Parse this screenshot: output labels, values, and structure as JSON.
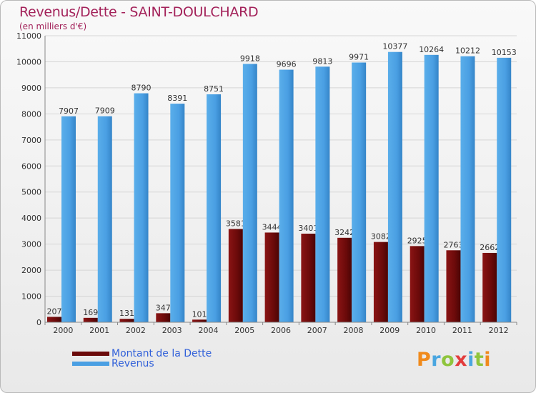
{
  "page": {
    "title": "Revenus/Dette - SAINT-DOULCHARD",
    "subtitle": "(en milliers d'€)"
  },
  "legend": {
    "items": [
      {
        "label": "Montant de la Dette",
        "color": "#6b0a0a"
      },
      {
        "label": "Revenus",
        "color": "#4a9fe3"
      }
    ]
  },
  "logo": {
    "text": "Proxiti",
    "colors": [
      "#f08a1c",
      "#4aa6e0",
      "#8fc53d",
      "#e23c3c",
      "#4aa6e0",
      "#8fc53d",
      "#f08a1c"
    ]
  },
  "chart_data": {
    "type": "bar",
    "title": "Revenus/Dette - SAINT-DOULCHARD",
    "subtitle": "(en milliers d'€)",
    "xlabel": "",
    "ylabel": "",
    "ylim": [
      0,
      11000
    ],
    "yticks": [
      0,
      1000,
      2000,
      3000,
      4000,
      5000,
      6000,
      7000,
      8000,
      9000,
      10000,
      11000
    ],
    "grid": true,
    "categories": [
      "2000",
      "2001",
      "2002",
      "2003",
      "2004",
      "2005",
      "2006",
      "2007",
      "2008",
      "2009",
      "2010",
      "2011",
      "2012"
    ],
    "series": [
      {
        "name": "Montant de la Dette",
        "color": "#6b0a0a",
        "values": [
          207,
          169,
          131,
          347,
          101,
          3581,
          3444,
          3401,
          3242,
          3082,
          2925,
          2763,
          2662
        ]
      },
      {
        "name": "Revenus",
        "color": "#4a9fe3",
        "values": [
          7907,
          7909,
          8790,
          8391,
          8751,
          9918,
          9696,
          9813,
          9971,
          10377,
          10264,
          10212,
          10153
        ]
      }
    ]
  }
}
